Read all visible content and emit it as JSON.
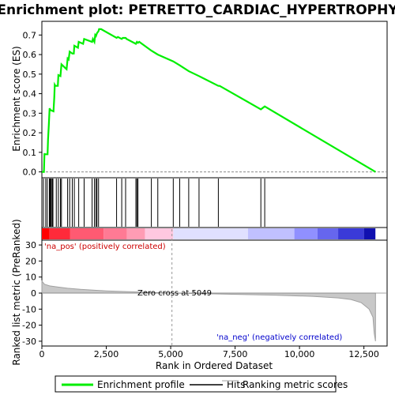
{
  "chart_data": {
    "type": "line",
    "title": "Enrichment plot: PETRETTO_CARDIAC_HYPERTROPHY",
    "es_panel": {
      "ylabel": "Enrichment score (ES)",
      "ylim": [
        -0.03,
        0.77
      ],
      "yticks": [
        "0.0",
        "0.1",
        "0.2",
        "0.3",
        "0.4",
        "0.5",
        "0.6",
        "0.7"
      ],
      "ytick_values": [
        0.0,
        0.1,
        0.2,
        0.3,
        0.4,
        0.5,
        0.6,
        0.7
      ],
      "series": [
        {
          "name": "Enrichment profile",
          "color": "#00ee00",
          "x": [
            0,
            80,
            100,
            120,
            220,
            240,
            270,
            300,
            320,
            350,
            450,
            480,
            500,
            520,
            620,
            640,
            720,
            760,
            920,
            960,
            1000,
            1040,
            1080,
            1180,
            1240,
            1260,
            1400,
            1430,
            1600,
            1640,
            1950,
            1980,
            2040,
            2070,
            2100,
            2140,
            2200,
            2220,
            2300,
            2900,
            2950,
            3100,
            3140,
            3250,
            3290,
            3650,
            3690,
            3730,
            3780,
            4250,
            4500,
            5100,
            5350,
            5700,
            6100,
            6850,
            6900,
            8500,
            8650,
            12950
          ],
          "y": [
            0.0,
            0.0,
            0.095,
            0.09,
            0.09,
            0.165,
            0.24,
            0.325,
            0.32,
            0.315,
            0.31,
            0.38,
            0.445,
            0.44,
            0.44,
            0.495,
            0.49,
            0.55,
            0.53,
            0.525,
            0.58,
            0.575,
            0.615,
            0.605,
            0.605,
            0.645,
            0.635,
            0.665,
            0.655,
            0.68,
            0.665,
            0.68,
            0.665,
            0.7,
            0.695,
            0.71,
            0.72,
            0.73,
            0.73,
            0.685,
            0.69,
            0.68,
            0.685,
            0.685,
            0.68,
            0.655,
            0.665,
            0.66,
            0.665,
            0.62,
            0.6,
            0.565,
            0.545,
            0.515,
            0.49,
            0.44,
            0.44,
            0.32,
            0.335,
            0.0
          ]
        }
      ]
    },
    "hits": [
      60,
      150,
      210,
      290,
      310,
      330,
      360,
      400,
      430,
      560,
      640,
      720,
      760,
      1000,
      1080,
      1180,
      1260,
      1430,
      1640,
      1950,
      2040,
      2100,
      2140,
      2200,
      2900,
      3100,
      3250,
      3650,
      3690,
      3730,
      4250,
      4500,
      5100,
      5350,
      5700,
      6100,
      6850,
      8500,
      8650
    ],
    "heatmap_colors": [
      "#ff0000",
      "#ff2a3a",
      "#ff5a72",
      "#ff7a94",
      "#ff9cb4",
      "#ffc8e0",
      "#e0e0ff",
      "#c0c0ff",
      "#9090ff",
      "#6666ee",
      "#3a3ad8",
      "#1010b0"
    ],
    "heatmap_breaks": [
      0,
      300,
      1100,
      2400,
      3300,
      4000,
      5100,
      8000,
      9800,
      10700,
      11500,
      12500,
      12950
    ],
    "metric_panel": {
      "ylabel": "Ranked list metric (PreRanked)",
      "xlabel": "Rank in Ordered Dataset",
      "ylim": [
        -33,
        33
      ],
      "yticks": [
        "-30",
        "-20",
        "-10",
        "0",
        "10",
        "20",
        "30"
      ],
      "ytick_values": [
        -30,
        -20,
        -10,
        0,
        10,
        20,
        30
      ],
      "x": [
        0,
        100,
        300,
        600,
        1000,
        1500,
        2500,
        3500,
        5049,
        7000,
        9000,
        10500,
        11500,
        12000,
        12400,
        12700,
        12850,
        12900,
        12950
      ],
      "y": [
        7.5,
        5.5,
        4.5,
        3.8,
        3.0,
        2.3,
        1.4,
        0.8,
        0.0,
        -0.6,
        -1.3,
        -2.0,
        -3.0,
        -4.0,
        -6.0,
        -10.0,
        -15.0,
        -25.0,
        -30.0
      ],
      "zero_cross_label": "Zero cross at 5049",
      "zero_cross_x": 5049,
      "pos_label": "'na_pos' (positively correlated)",
      "neg_label": "'na_neg' (negatively correlated)"
    },
    "xlim": [
      0,
      13400
    ],
    "xticks": [
      "0",
      "2,500",
      "5,000",
      "7,500",
      "10,000",
      "12,500"
    ],
    "xtick_values": [
      0,
      2500,
      5000,
      7500,
      10000,
      12500
    ]
  },
  "legend": {
    "items": [
      {
        "label": "Enrichment profile",
        "color": "#00ee00"
      },
      {
        "label": "Hits",
        "color": "#000000"
      },
      {
        "label": "Ranking metric scores",
        "color": "#c0c0c0"
      }
    ]
  }
}
